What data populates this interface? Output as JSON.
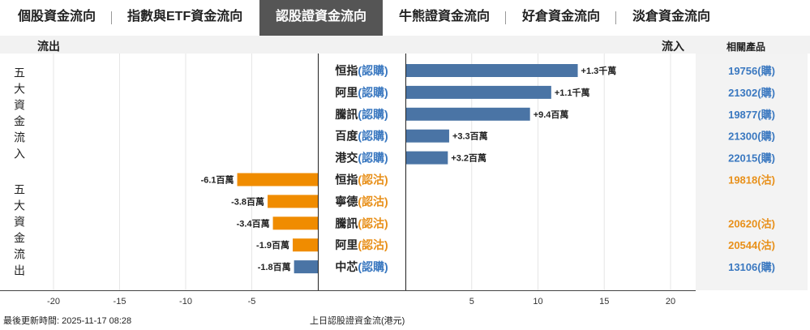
{
  "tabs": [
    {
      "label": "個股資金流向",
      "active": false
    },
    {
      "label": "指數與ETF資金流向",
      "active": false
    },
    {
      "label": "認股證資金流向",
      "active": true
    },
    {
      "label": "牛熊證資金流向",
      "active": false
    },
    {
      "label": "好倉資金流向",
      "active": false
    },
    {
      "label": "淡倉資金流向",
      "active": false
    }
  ],
  "header": {
    "outflow": "流出",
    "inflow": "流入",
    "related": "相關產品"
  },
  "side_labels": {
    "inflow_group": "五大資金流入",
    "outflow_group": "五大資金流出"
  },
  "footer": {
    "updated": "最後更新時間: 2025-11-17 08:28",
    "caption": "上日認股證資金流(港元)"
  },
  "colors": {
    "inflow": "#4a74a5",
    "outflow": "#f08c00",
    "call_text": "#3a78c0",
    "put_text": "#e8901a",
    "panel": "#f3f3f3"
  },
  "chart_data": {
    "type": "bar",
    "orientation": "horizontal",
    "unit": "百萬港元",
    "xlim": [
      -22,
      22
    ],
    "xticks": [
      -20,
      -15,
      -10,
      -5,
      5,
      10,
      15,
      20
    ],
    "grid": "vertical",
    "rows": [
      {
        "name": "恒指",
        "kind": "(認購)",
        "value": 13,
        "label": "+1.3千萬",
        "product": "19756(購)"
      },
      {
        "name": "阿里",
        "kind": "(認購)",
        "value": 11,
        "label": "+1.1千萬",
        "product": "21302(購)"
      },
      {
        "name": "騰訊",
        "kind": "(認購)",
        "value": 9.4,
        "label": "+9.4百萬",
        "product": "19877(購)"
      },
      {
        "name": "百度",
        "kind": "(認購)",
        "value": 3.3,
        "label": "+3.3百萬",
        "product": "21300(購)"
      },
      {
        "name": "港交",
        "kind": "(認購)",
        "value": 3.2,
        "label": "+3.2百萬",
        "product": "22015(購)"
      },
      {
        "name": "恒指",
        "kind": "(認沽)",
        "value": -6.1,
        "label": "-6.1百萬",
        "product": "19818(沽)"
      },
      {
        "name": "寧德",
        "kind": "(認沽)",
        "value": -3.8,
        "label": "-3.8百萬",
        "product": ""
      },
      {
        "name": "騰訊",
        "kind": "(認沽)",
        "value": -3.4,
        "label": "-3.4百萬",
        "product": "20620(沽)"
      },
      {
        "name": "阿里",
        "kind": "(認沽)",
        "value": -1.9,
        "label": "-1.9百萬",
        "product": "20544(沽)"
      },
      {
        "name": "中芯",
        "kind": "(認購)",
        "value": -1.8,
        "label": "-1.8百萬",
        "product": "13106(購)"
      }
    ]
  }
}
